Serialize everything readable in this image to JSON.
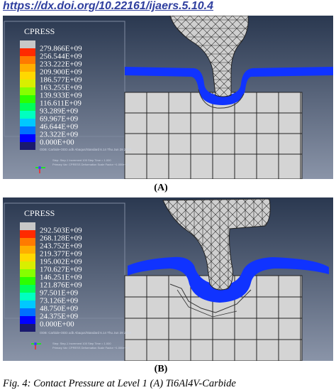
{
  "doi": "https://dx.doi.org/10.22161/ijaers.5.10.4",
  "panels": [
    {
      "id": "A",
      "caption": "(A)",
      "legend_title": "CPRESS",
      "legend_values": [
        "279.866E+09",
        "256.544E+09",
        "233.222E+09",
        "209.900E+09",
        "186.577E+09",
        "163.255E+09",
        "139.933E+09",
        "116.611E+09",
        "93.289E+09",
        "69.967E+09",
        "46.644E+09",
        "23.322E+09",
        "0.000E+00"
      ]
    },
    {
      "id": "B",
      "caption": "(B)",
      "legend_title": "CPRESS",
      "legend_values": [
        "292.503E+09",
        "268.128E+09",
        "243.752E+09",
        "219.377E+09",
        "195.002E+09",
        "170.627E+09",
        "146.251E+09",
        "121.876E+09",
        "97.501E+09",
        "73.126E+09",
        "48.750E+09",
        "24.375E+09",
        "0.000E+00"
      ]
    }
  ],
  "legend_colors": [
    "#c8c8c8",
    "#ff2a00",
    "#ff7a00",
    "#ffae00",
    "#ffd800",
    "#d8ef00",
    "#86ff00",
    "#2cff00",
    "#00ff5a",
    "#00ffc0",
    "#00c8ff",
    "#0070ff",
    "#0000ff",
    "#1a1a6e"
  ],
  "figure_caption": "Fig. 4: Contact Pressure at Level 1 (A) Ti6Al4V-Carbide"
}
